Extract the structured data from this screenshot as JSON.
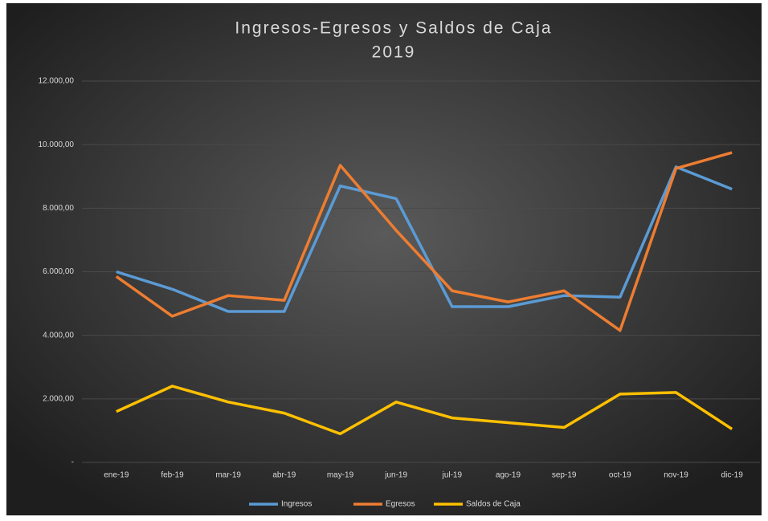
{
  "chart_data": {
    "type": "line",
    "title": "Ingresos-Egresos y Saldos de Caja",
    "subtitle": "2019",
    "categories": [
      "ene-19",
      "feb-19",
      "mar-19",
      "abr-19",
      "may-19",
      "jun-19",
      "jul-19",
      "ago-19",
      "sep-19",
      "oct-19",
      "nov-19",
      "dic-19"
    ],
    "series": [
      {
        "name": "Ingresos",
        "color": "#5b9bd5",
        "values": [
          6000,
          5450,
          4750,
          4750,
          8700,
          8300,
          4900,
          4900,
          5250,
          5200,
          9300,
          8600
        ]
      },
      {
        "name": "Egresos",
        "color": "#ed7d31",
        "values": [
          5850,
          4600,
          5250,
          5100,
          9350,
          7300,
          5400,
          5050,
          5400,
          4150,
          9250,
          9750
        ]
      },
      {
        "name": "Saldos de Caja",
        "color": "#ffc000",
        "values": [
          1600,
          2400,
          1900,
          1550,
          900,
          1900,
          1400,
          1250,
          1100,
          2150,
          2200,
          1050
        ]
      }
    ],
    "ylim": [
      0,
      12000
    ],
    "yticks": [
      {
        "value": 0,
        "label": "-"
      },
      {
        "value": 2000,
        "label": "2.000,00"
      },
      {
        "value": 4000,
        "label": "4.000,00"
      },
      {
        "value": 6000,
        "label": "6.000,00"
      },
      {
        "value": 8000,
        "label": "8.000,00"
      },
      {
        "value": 10000,
        "label": "10.000,00"
      },
      {
        "value": 12000,
        "label": "12.000,00"
      }
    ],
    "grid": true,
    "legend": "bottom"
  }
}
